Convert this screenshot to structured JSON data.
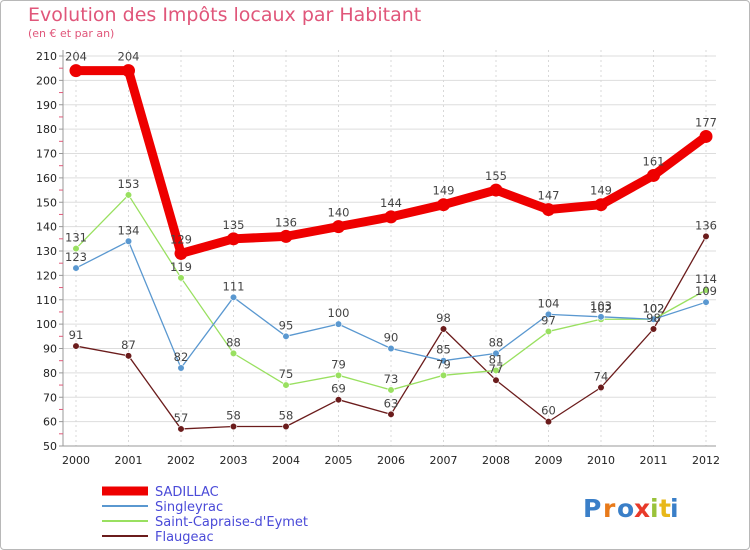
{
  "chart_data": {
    "type": "line",
    "title": "Evolution des Impôts locaux par Habitant",
    "subtitle": "(en € et par an)",
    "xlabel": "",
    "ylabel": "",
    "ylim": [
      50,
      210
    ],
    "yticks": [
      50,
      60,
      70,
      80,
      90,
      100,
      110,
      120,
      130,
      140,
      150,
      160,
      170,
      180,
      190,
      200,
      210
    ],
    "categories": [
      "2000",
      "2001",
      "2002",
      "2003",
      "2004",
      "2005",
      "2006",
      "2007",
      "2008",
      "2009",
      "2010",
      "2011",
      "2012"
    ],
    "series": [
      {
        "name": "SADILLAC",
        "color": "#ee0000",
        "values": [
          204,
          204,
          129,
          135,
          136,
          140,
          144,
          149,
          155,
          147,
          149,
          161,
          177
        ]
      },
      {
        "name": "Singleyrac",
        "color": "#5a98d0",
        "values": [
          123,
          134,
          82,
          111,
          95,
          100,
          90,
          85,
          88,
          104,
          103,
          102,
          109
        ]
      },
      {
        "name": "Saint-Capraise-d'Eymet",
        "color": "#99e060",
        "values": [
          131,
          153,
          119,
          88,
          75,
          79,
          73,
          79,
          81,
          97,
          102,
          102,
          114
        ]
      },
      {
        "name": "Flaugeac",
        "color": "#6b1c1c",
        "values": [
          91,
          87,
          57,
          58,
          58,
          69,
          63,
          98,
          77,
          60,
          74,
          98,
          136
        ]
      }
    ],
    "legend_position": "bottom-left"
  },
  "logo": {
    "text": "Proxiti",
    "letters": [
      "P",
      "r",
      "o",
      "x",
      "i",
      "t",
      "i"
    ],
    "colors": [
      "#3a7fc8",
      "#e87a1a",
      "#3a7fc8",
      "#e83a2a",
      "#9ac23a",
      "#e8b81a",
      "#3a7fc8"
    ]
  }
}
